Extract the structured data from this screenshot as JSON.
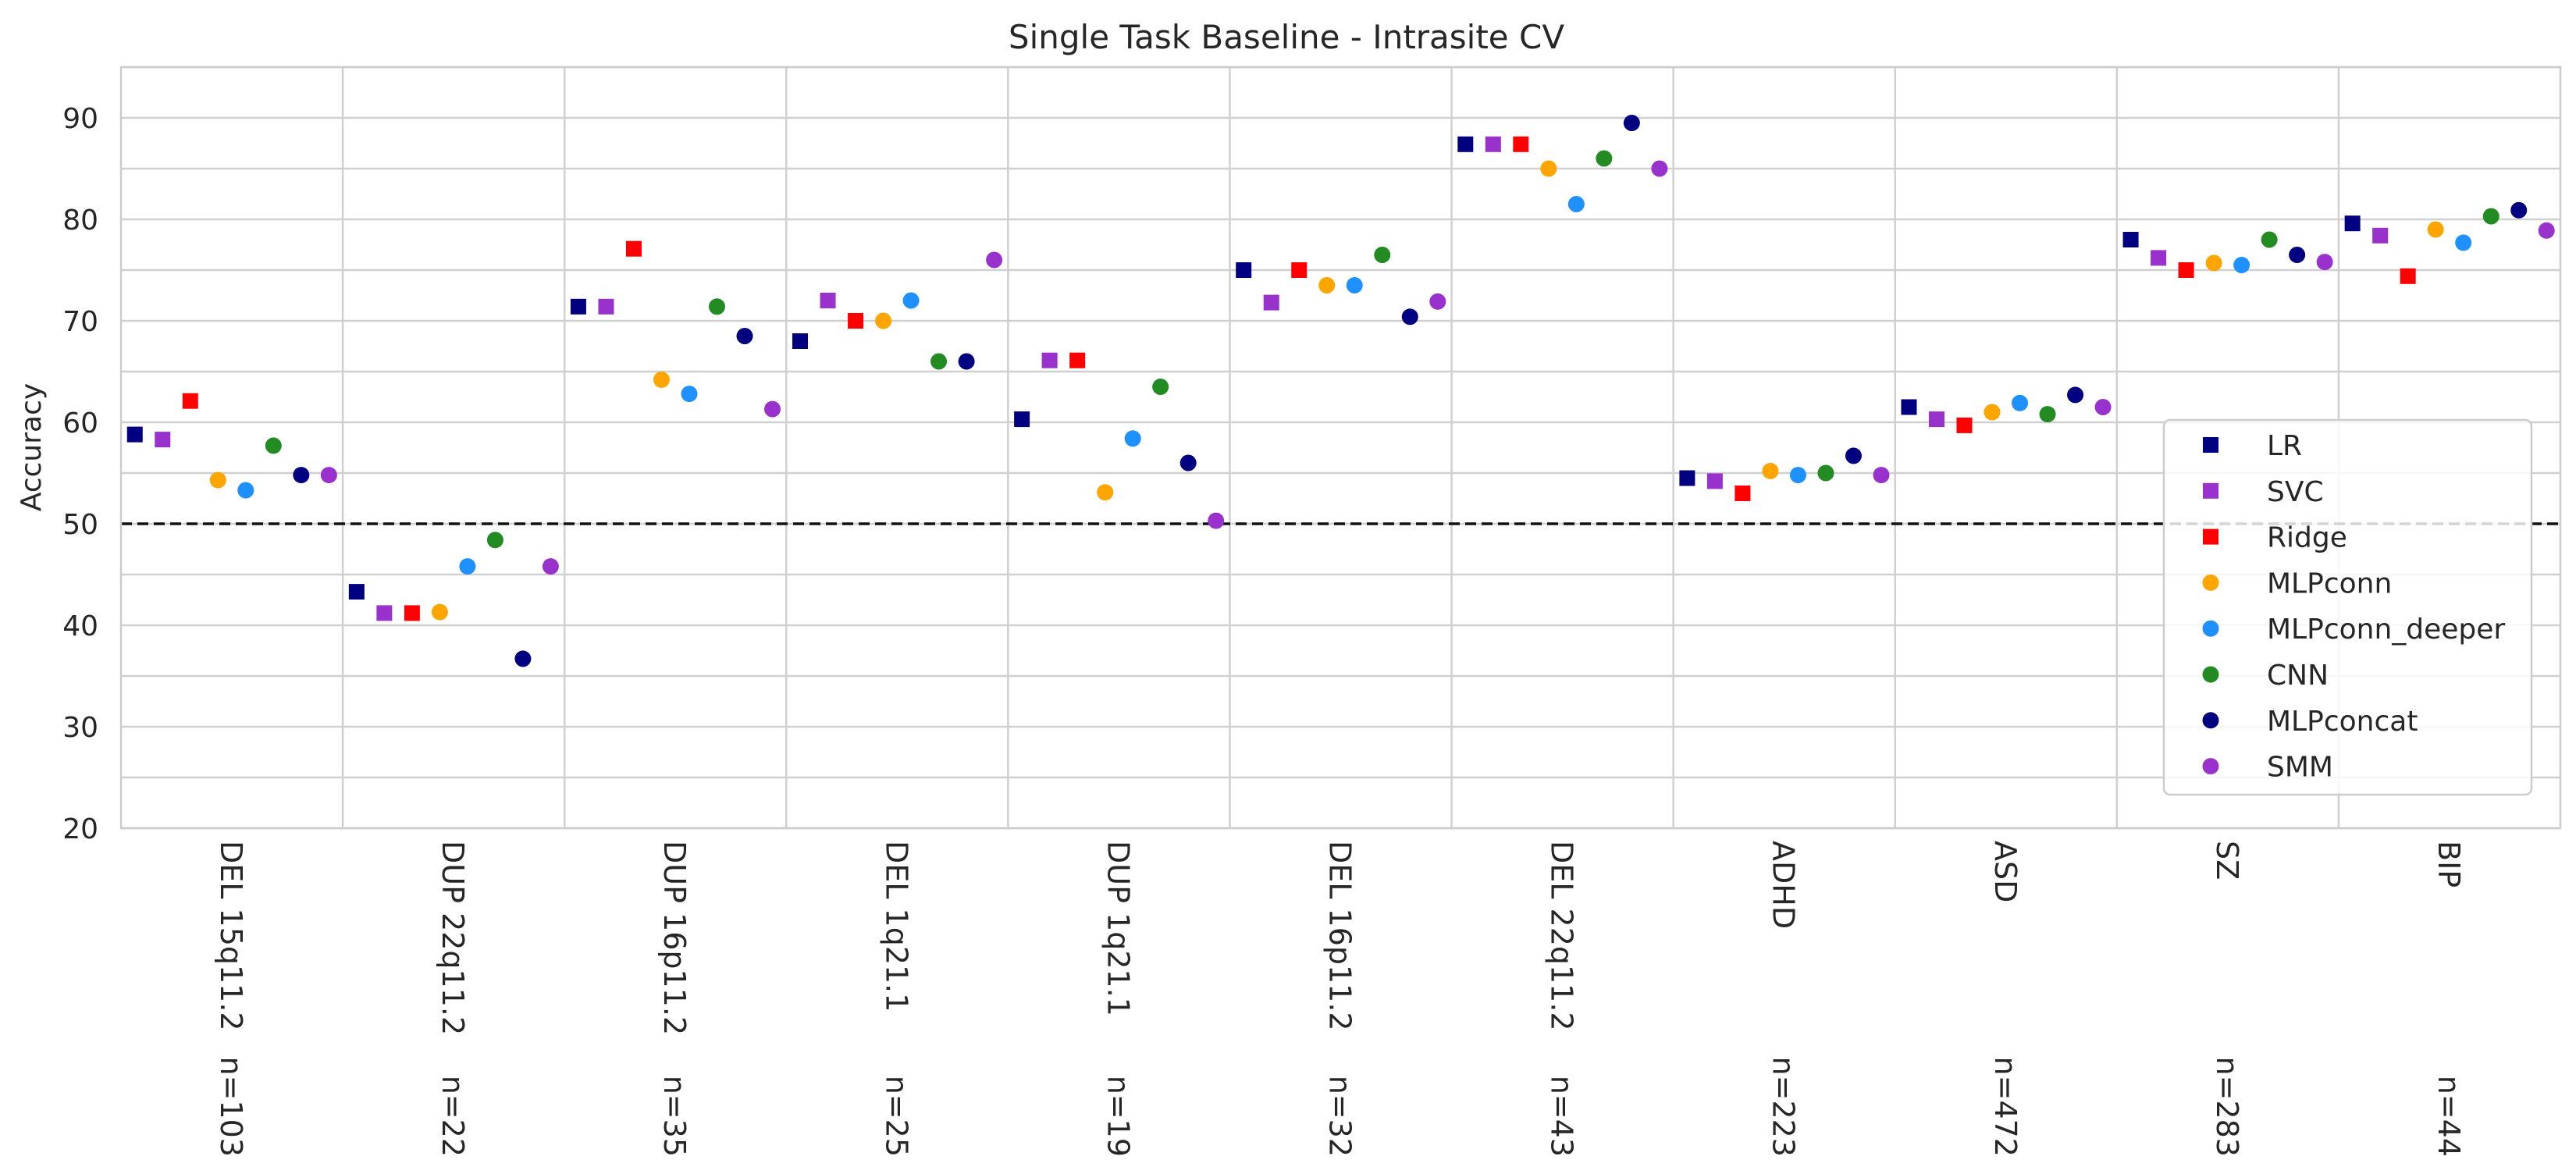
{
  "chart_data": {
    "type": "scatter",
    "title": "Single Task Baseline - Intrasite CV",
    "ylabel": "Accuracy",
    "ylim": [
      20,
      95
    ],
    "yticks": [
      20,
      30,
      40,
      50,
      60,
      70,
      80,
      90
    ],
    "reference_line": 50,
    "grid": true,
    "legend_position": "right",
    "categories": [
      "DEL 15q11.2",
      "DUP 22q11.2",
      "DUP 16p11.2",
      "DEL 1q21.1",
      "DUP 1q21.1",
      "DEL 16p11.2",
      "DEL 22q11.2",
      "ADHD",
      "ASD",
      "SZ",
      "BIP"
    ],
    "sample_sizes": [
      "n=103",
      "n=22",
      "n=35",
      "n=25",
      "n=19",
      "n=32",
      "n=43",
      "n=223",
      "n=472",
      "n=283",
      "n=44"
    ],
    "series": [
      {
        "name": "LR",
        "marker": "square",
        "color": "#000080",
        "values": [
          58.8,
          43.3,
          71.4,
          68.0,
          60.3,
          75.0,
          87.4,
          54.5,
          61.5,
          78.0,
          79.6
        ]
      },
      {
        "name": "SVC",
        "marker": "square",
        "color": "#9932CC",
        "values": [
          58.3,
          41.2,
          71.4,
          72.0,
          66.1,
          71.8,
          87.4,
          54.2,
          60.3,
          76.2,
          78.4
        ]
      },
      {
        "name": "Ridge",
        "marker": "square",
        "color": "#FF0000",
        "values": [
          62.1,
          41.2,
          77.1,
          70.0,
          66.1,
          75.0,
          87.4,
          53.0,
          59.7,
          75.0,
          74.4
        ]
      },
      {
        "name": "MLPconn",
        "marker": "circle",
        "color": "#FFA500",
        "values": [
          54.3,
          41.3,
          64.2,
          70.0,
          53.1,
          73.5,
          85.0,
          55.2,
          61.0,
          75.7,
          79.0
        ]
      },
      {
        "name": "MLPconn_deeper",
        "marker": "circle",
        "color": "#1E90FF",
        "values": [
          53.3,
          45.8,
          62.8,
          72.0,
          58.4,
          73.5,
          81.5,
          54.8,
          61.9,
          75.5,
          77.7
        ]
      },
      {
        "name": "CNN",
        "marker": "circle",
        "color": "#228B22",
        "values": [
          57.7,
          48.4,
          71.4,
          66.0,
          63.5,
          76.5,
          86.0,
          55.0,
          60.8,
          78.0,
          80.3
        ]
      },
      {
        "name": "MLPconcat",
        "marker": "circle",
        "color": "#000080",
        "values": [
          54.8,
          36.7,
          68.5,
          66.0,
          56.0,
          70.4,
          89.5,
          56.7,
          62.7,
          76.5,
          80.9
        ]
      },
      {
        "name": "SMM",
        "marker": "circle",
        "color": "#9932CC",
        "values": [
          54.8,
          45.8,
          61.3,
          76.0,
          50.3,
          71.9,
          85.0,
          54.8,
          61.5,
          75.8,
          78.9
        ]
      }
    ]
  }
}
